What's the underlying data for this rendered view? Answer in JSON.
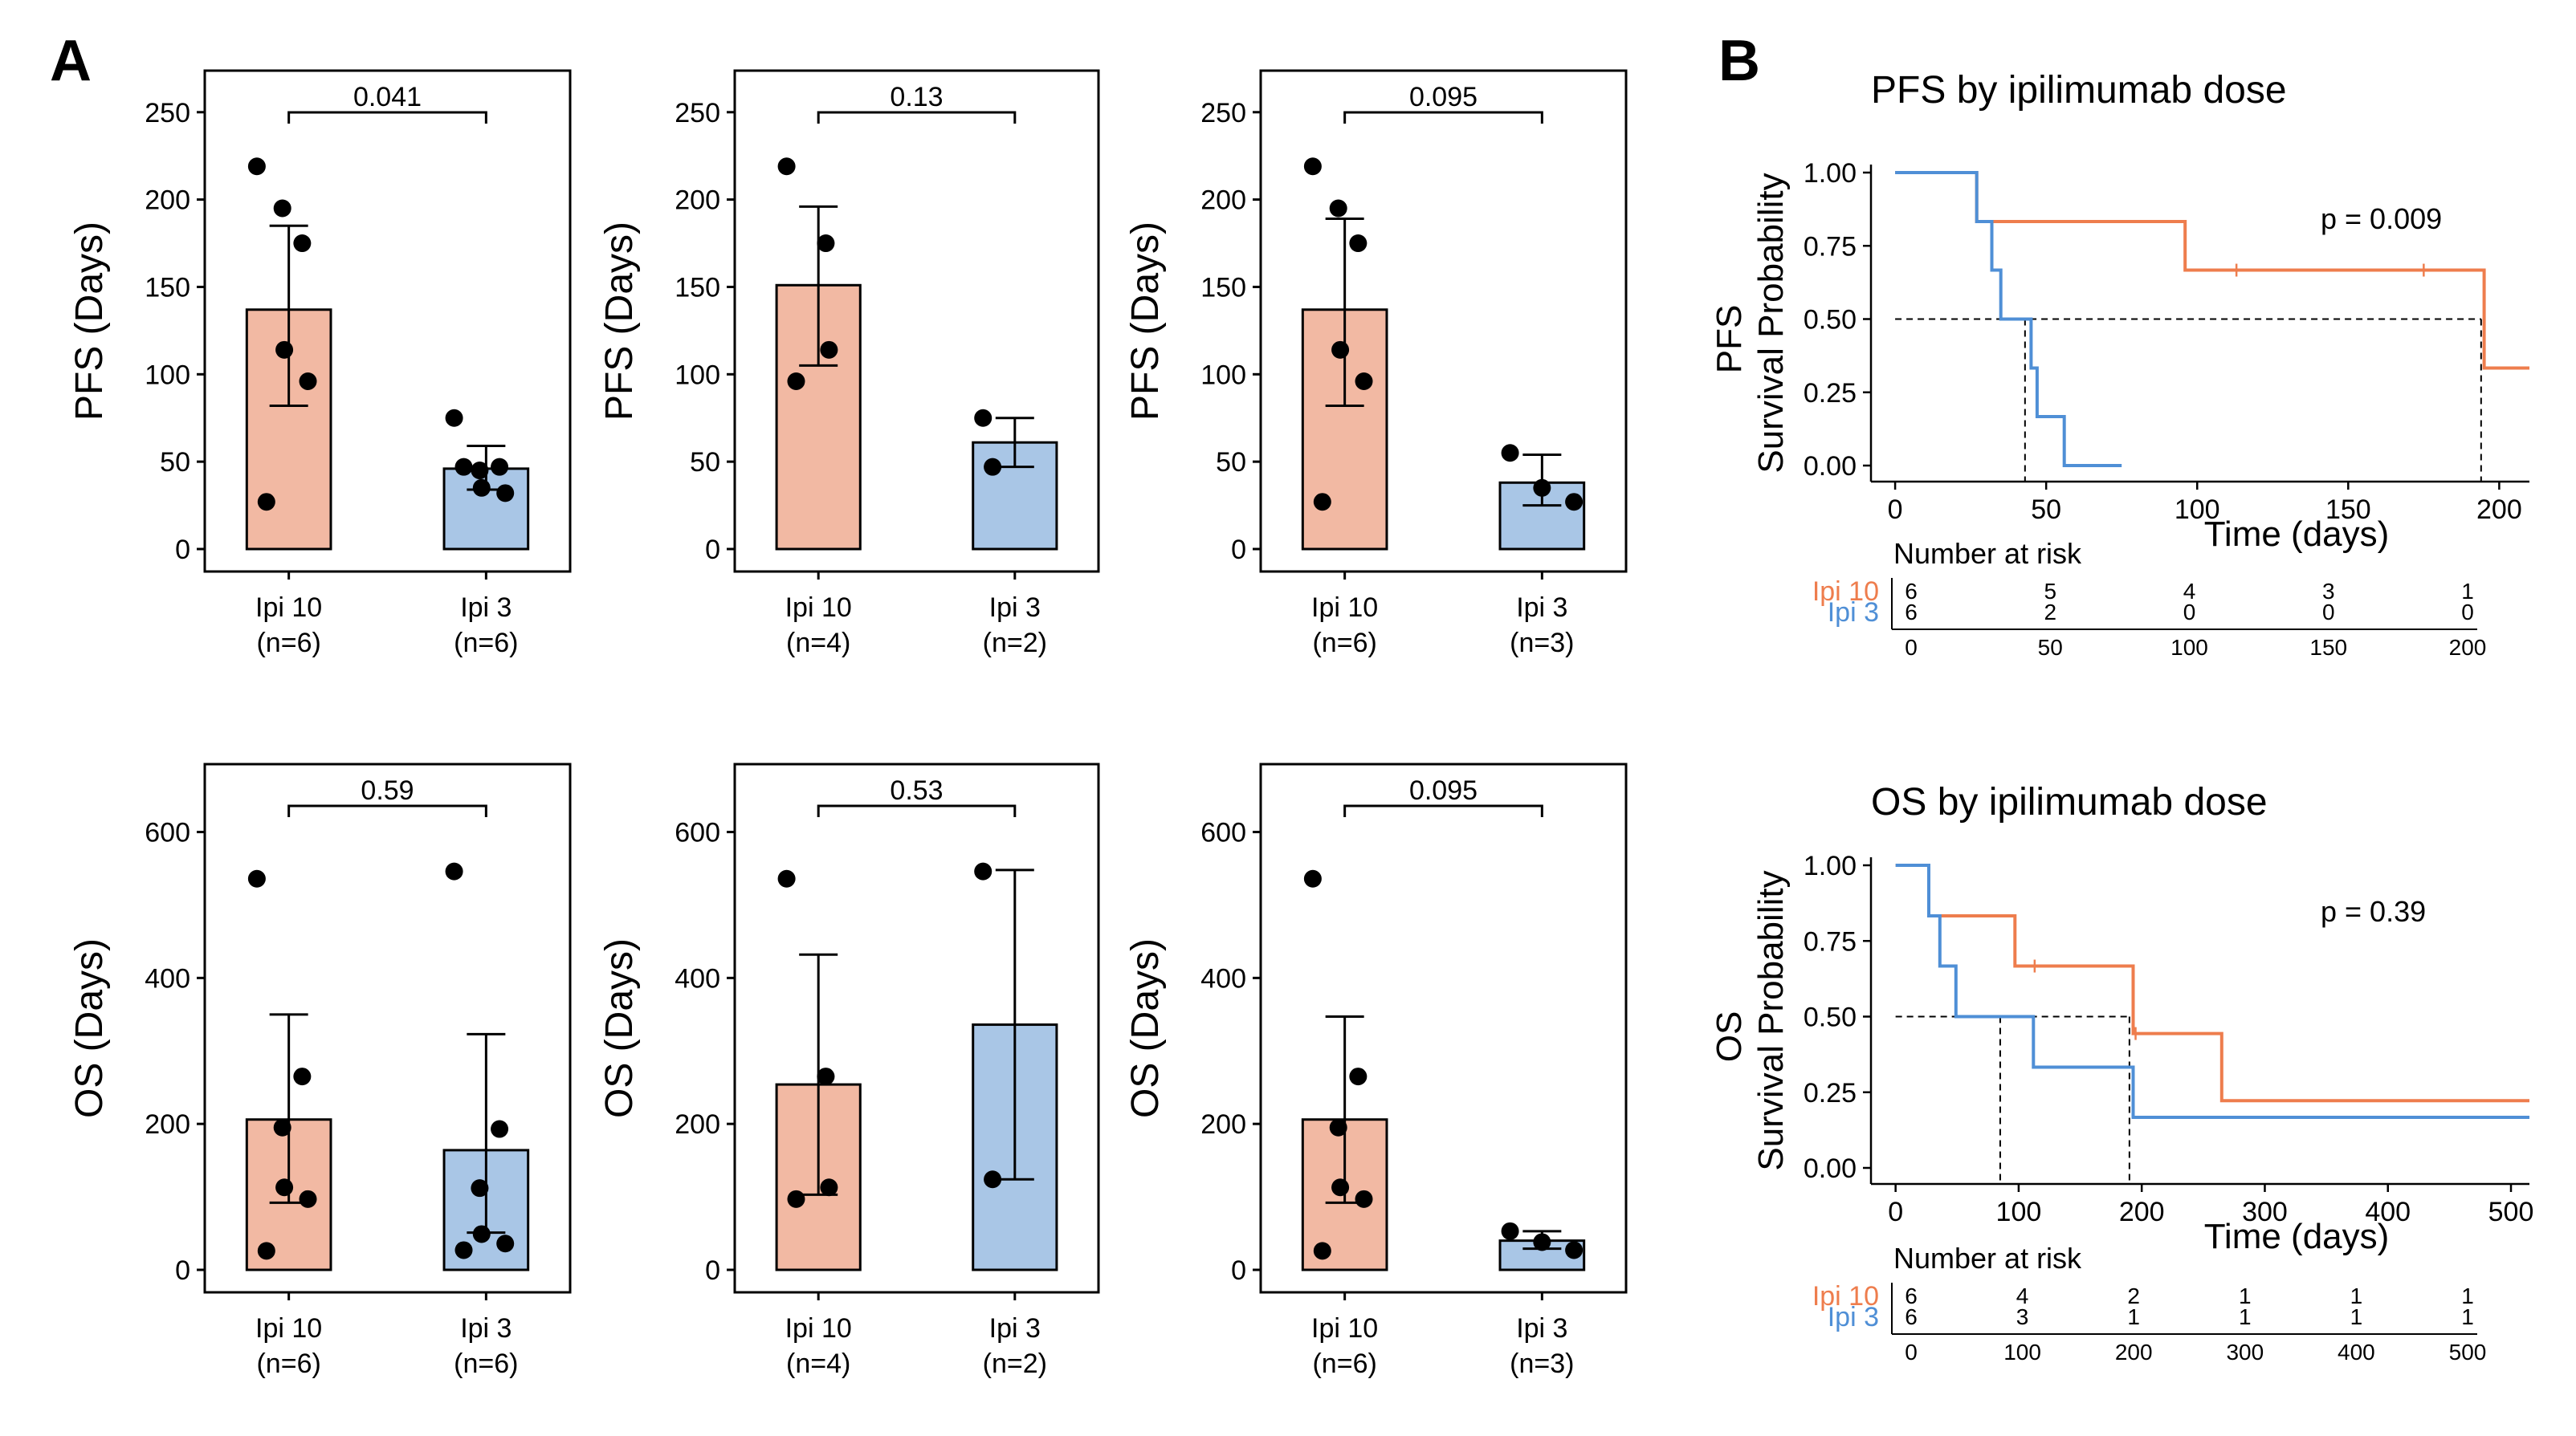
{
  "figure": {
    "panel_a_label": "A",
    "panel_b_label": "B",
    "colors": {
      "ipi10_fill": "#f2b9a3",
      "ipi3_fill": "#a9c6e6",
      "ipi10_line": "#ee7d4d",
      "ipi3_line": "#4f8fd6",
      "dots": "#000000"
    }
  },
  "chart_data": [
    {
      "id": "pfs1",
      "type": "bar",
      "ylabel": "PFS (Days)",
      "ylim": [
        0,
        260
      ],
      "yticks": [
        0,
        50,
        100,
        150,
        200,
        250
      ],
      "pvalue": "0.041",
      "bars": [
        {
          "label": "Ipi 10",
          "n": "(n=6)",
          "group": "ipi10",
          "value": 137,
          "err_low": 82,
          "err_high": 185,
          "points": [
            219,
            175,
            195,
            114,
            96,
            27
          ]
        },
        {
          "label": "Ipi 3",
          "n": "(n=6)",
          "group": "ipi3",
          "value": 46,
          "err_low": 34,
          "err_high": 59,
          "points": [
            75,
            47,
            45,
            35,
            32,
            47
          ]
        }
      ]
    },
    {
      "id": "pfs2",
      "type": "bar",
      "ylabel": "PFS (Days)",
      "ylim": [
        0,
        260
      ],
      "yticks": [
        0,
        50,
        100,
        150,
        200,
        250
      ],
      "pvalue": "0.13",
      "bars": [
        {
          "label": "Ipi 10",
          "n": "(n=4)",
          "group": "ipi10",
          "value": 151,
          "err_low": 105,
          "err_high": 196,
          "points": [
            219,
            175,
            114,
            96
          ]
        },
        {
          "label": "Ipi 3",
          "n": "(n=2)",
          "group": "ipi3",
          "value": 61,
          "err_low": 47,
          "err_high": 75,
          "points": [
            75,
            47
          ]
        }
      ]
    },
    {
      "id": "pfs3",
      "type": "bar",
      "ylabel": "PFS (Days)",
      "ylim": [
        0,
        260
      ],
      "yticks": [
        0,
        50,
        100,
        150,
        200,
        250
      ],
      "pvalue": "0.095",
      "bars": [
        {
          "label": "Ipi 10",
          "n": "(n=6)",
          "group": "ipi10",
          "value": 137,
          "err_low": 82,
          "err_high": 189,
          "points": [
            219,
            175,
            195,
            114,
            96,
            27
          ]
        },
        {
          "label": "Ipi 3",
          "n": "(n=3)",
          "group": "ipi3",
          "value": 38,
          "err_low": 25,
          "err_high": 54,
          "points": [
            55,
            35,
            27
          ]
        }
      ]
    },
    {
      "id": "os1",
      "type": "bar",
      "ylabel": "OS (Days)",
      "ylim": [
        0,
        660
      ],
      "yticks": [
        0,
        200,
        400,
        600
      ],
      "pvalue": "0.59",
      "bars": [
        {
          "label": "Ipi 10",
          "n": "(n=6)",
          "group": "ipi10",
          "value": 206,
          "err_low": 92,
          "err_high": 350,
          "points": [
            536,
            265,
            195,
            113,
            97,
            26
          ]
        },
        {
          "label": "Ipi 3",
          "n": "(n=6)",
          "group": "ipi3",
          "value": 164,
          "err_low": 51,
          "err_high": 323,
          "points": [
            546,
            193,
            112,
            49,
            36,
            27
          ]
        }
      ]
    },
    {
      "id": "os2",
      "type": "bar",
      "ylabel": "OS (Days)",
      "ylim": [
        0,
        660
      ],
      "yticks": [
        0,
        200,
        400,
        600
      ],
      "pvalue": "0.53",
      "bars": [
        {
          "label": "Ipi 10",
          "n": "(n=4)",
          "group": "ipi10",
          "value": 254,
          "err_low": 103,
          "err_high": 432,
          "points": [
            536,
            265,
            113,
            97
          ]
        },
        {
          "label": "Ipi 3",
          "n": "(n=2)",
          "group": "ipi3",
          "value": 336,
          "err_low": 124,
          "err_high": 548,
          "points": [
            546,
            124
          ]
        }
      ]
    },
    {
      "id": "os3",
      "type": "bar",
      "ylabel": "OS (Days)",
      "ylim": [
        0,
        660
      ],
      "yticks": [
        0,
        200,
        400,
        600
      ],
      "pvalue": "0.095",
      "bars": [
        {
          "label": "Ipi 10",
          "n": "(n=6)",
          "group": "ipi10",
          "value": 206,
          "err_low": 92,
          "err_high": 347,
          "points": [
            536,
            265,
            195,
            113,
            97,
            26
          ]
        },
        {
          "label": "Ipi 3",
          "n": "(n=3)",
          "group": "ipi3",
          "value": 40,
          "err_low": 29,
          "err_high": 53,
          "points": [
            53,
            38,
            27
          ]
        }
      ]
    },
    {
      "id": "km_pfs",
      "type": "line",
      "subtype": "kaplan-meier",
      "title": "PFS by ipilimumab dose",
      "ylabel_top": "PFS",
      "ylabel": "Survival Probability",
      "xlabel": "Time (days)",
      "xlim": [
        -8,
        210
      ],
      "ylim": [
        0,
        1
      ],
      "xticks": [
        0,
        50,
        100,
        150,
        200
      ],
      "yticks": [
        "0.00",
        "0.25",
        "0.50",
        "0.75",
        "1.00"
      ],
      "pvalue": "p = 0.009",
      "series": [
        {
          "name": "Ipi 10",
          "group": "ipi10",
          "x": [
            0,
            27,
            27,
            96,
            96,
            195,
            195,
            210
          ],
          "y": [
            1,
            1,
            0.833,
            0.833,
            0.667,
            0.667,
            0.333,
            0.333
          ],
          "censor_x": [
            113,
            175
          ]
        },
        {
          "name": "Ipi 3",
          "group": "ipi3",
          "x": [
            0,
            27,
            27,
            32,
            32,
            35,
            35,
            45,
            45,
            47,
            47,
            56,
            56,
            75,
            75
          ],
          "y": [
            1,
            1,
            0.833,
            0.833,
            0.667,
            0.667,
            0.5,
            0.5,
            0.333,
            0.333,
            0.167,
            0.167,
            0,
            0,
            0
          ]
        }
      ],
      "median_x": [
        43,
        194
      ],
      "median_y": 0.5,
      "risk_table": {
        "title": "Number at risk",
        "times": [
          0,
          50,
          100,
          150,
          200
        ],
        "rows": [
          {
            "label": "Ipi 10",
            "group": "ipi10",
            "values": [
              "6",
              "5",
              "4",
              "3",
              "1"
            ]
          },
          {
            "label": "Ipi 3",
            "group": "ipi3",
            "values": [
              "6",
              "2",
              "0",
              "0",
              "0"
            ]
          }
        ]
      }
    },
    {
      "id": "km_os",
      "type": "line",
      "subtype": "kaplan-meier",
      "title": "OS by ipilimumab dose",
      "ylabel_top": "OS",
      "ylabel": "Survival Probability",
      "xlabel": "Time (days)",
      "xlim": [
        -20,
        515
      ],
      "ylim": [
        0,
        1
      ],
      "xticks": [
        0,
        100,
        200,
        300,
        400,
        500
      ],
      "yticks": [
        "0.00",
        "0.25",
        "0.50",
        "0.75",
        "1.00"
      ],
      "pvalue": "p = 0.39",
      "series": [
        {
          "name": "Ipi 10",
          "group": "ipi10",
          "x": [
            0,
            27,
            27,
            97,
            97,
            193,
            193,
            265,
            265,
            515
          ],
          "y": [
            1,
            1,
            0.833,
            0.833,
            0.667,
            0.667,
            0.444,
            0.444,
            0.222,
            0.222
          ],
          "censor_x": [
            113,
            195
          ]
        },
        {
          "name": "Ipi 3",
          "group": "ipi3",
          "x": [
            0,
            27,
            27,
            36,
            36,
            49,
            49,
            112,
            112,
            193,
            193,
            515
          ],
          "y": [
            1,
            1,
            0.833,
            0.833,
            0.667,
            0.667,
            0.5,
            0.5,
            0.333,
            0.333,
            0.167,
            0.167
          ]
        }
      ],
      "median_x": [
        85,
        190
      ],
      "median_y": 0.5,
      "risk_table": {
        "title": "Number at risk",
        "times": [
          0,
          100,
          200,
          300,
          400,
          500
        ],
        "rows": [
          {
            "label": "Ipi 10",
            "group": "ipi10",
            "values": [
              "6",
              "4",
              "2",
              "1",
              "1",
              "1"
            ]
          },
          {
            "label": "Ipi 3",
            "group": "ipi3",
            "values": [
              "6",
              "3",
              "1",
              "1",
              "1",
              "1"
            ]
          }
        ]
      }
    }
  ]
}
